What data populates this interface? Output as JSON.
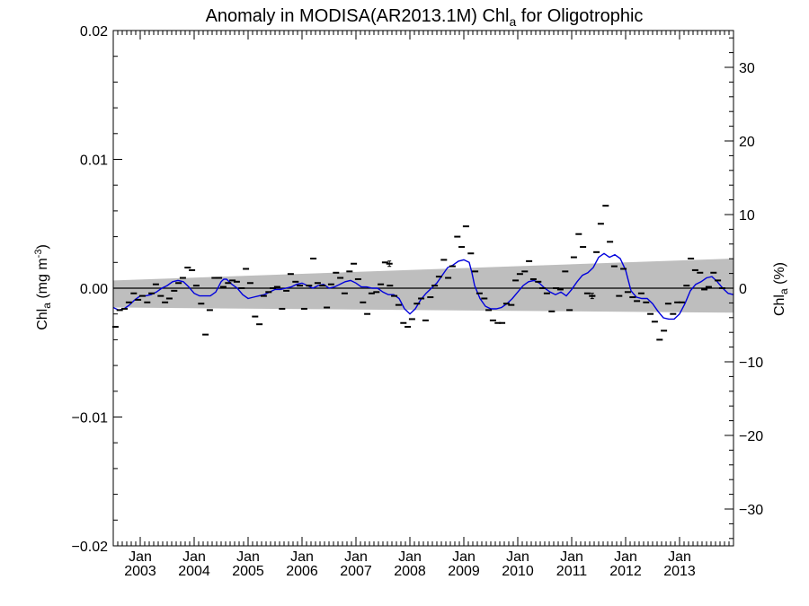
{
  "chart_data": {
    "type": "line",
    "title": "Anomaly in MODISA(AR2013.1M) Chl",
    "title_subscript": "a",
    "title_suffix": " for Oligotrophic",
    "ylabel_left": {
      "base": "Chl",
      "sub": "a",
      "mid": " (mg m",
      "sup": "-3",
      "end": ")"
    },
    "ylabel_right": {
      "base": "Chl",
      "sub": "a",
      "end": " (%)"
    },
    "y_left_range": [
      -0.02,
      0.02
    ],
    "y_left_ticks": [
      {
        "v": 0.02,
        "label": "0.02"
      },
      {
        "v": 0.01,
        "label": "0.01"
      },
      {
        "v": 0.0,
        "label": "0.00"
      },
      {
        "v": -0.01,
        "label": "−0.01"
      },
      {
        "v": -0.02,
        "label": "−0.02"
      }
    ],
    "y_right_ticks": [
      {
        "v": 30,
        "label": "30"
      },
      {
        "v": 20,
        "label": "20"
      },
      {
        "v": 10,
        "label": "10"
      },
      {
        "v": 0,
        "label": "0"
      },
      {
        "v": -10,
        "label": "−10"
      },
      {
        "v": -20,
        "label": "−20"
      },
      {
        "v": -30,
        "label": "−30"
      }
    ],
    "y_right_range": [
      -35,
      35
    ],
    "x_range": [
      2002.5,
      2014.0
    ],
    "x_ticks": [
      {
        "v": 2003.0,
        "month": "Jan",
        "year": "2003"
      },
      {
        "v": 2004.0,
        "month": "Jan",
        "year": "2004"
      },
      {
        "v": 2005.0,
        "month": "Jan",
        "year": "2005"
      },
      {
        "v": 2006.0,
        "month": "Jan",
        "year": "2006"
      },
      {
        "v": 2007.0,
        "month": "Jan",
        "year": "2007"
      },
      {
        "v": 2008.0,
        "month": "Jan",
        "year": "2008"
      },
      {
        "v": 2009.0,
        "month": "Jan",
        "year": "2009"
      },
      {
        "v": 2010.0,
        "month": "Jan",
        "year": "2010"
      },
      {
        "v": 2011.0,
        "month": "Jan",
        "year": "2011"
      },
      {
        "v": 2012.0,
        "month": "Jan",
        "year": "2012"
      },
      {
        "v": 2013.0,
        "month": "Jan",
        "year": "2013"
      }
    ],
    "trend_band": {
      "upper": [
        [
          2002.5,
          0.0006
        ],
        [
          2014.0,
          0.0023
        ]
      ],
      "lower": [
        [
          2002.5,
          -0.0015
        ],
        [
          2014.0,
          -0.0019
        ]
      ],
      "color": "#bebebe"
    },
    "zero_line_color": "#000000",
    "monthly_anomalies": {
      "color": "#000000",
      "points": [
        [
          2002.54,
          -0.003
        ],
        [
          2002.62,
          -0.0017
        ],
        [
          2002.71,
          -0.0016
        ],
        [
          2002.79,
          -0.0011
        ],
        [
          2002.88,
          -0.0004
        ],
        [
          2002.96,
          -0.0009
        ],
        [
          2003.04,
          -0.0006
        ],
        [
          2003.13,
          -0.0011
        ],
        [
          2003.21,
          -0.0004
        ],
        [
          2003.29,
          0.0003
        ],
        [
          2003.38,
          -0.0006
        ],
        [
          2003.46,
          -0.0011
        ],
        [
          2003.54,
          -0.0008
        ],
        [
          2003.63,
          -0.0002
        ],
        [
          2003.71,
          0.0004
        ],
        [
          2003.79,
          0.0008
        ],
        [
          2003.88,
          0.0016
        ],
        [
          2003.96,
          0.0014
        ],
        [
          2004.04,
          0.0002
        ],
        [
          2004.13,
          -0.0012
        ],
        [
          2004.21,
          -0.0036
        ],
        [
          2004.29,
          -0.0017
        ],
        [
          2004.38,
          0.0008
        ],
        [
          2004.46,
          0.0008
        ],
        [
          2004.54,
          0.0001
        ],
        [
          2004.63,
          0.0004
        ],
        [
          2004.71,
          0.0006
        ],
        [
          2004.79,
          0.0005
        ],
        [
          2004.88,
          0.0
        ],
        [
          2004.96,
          0.0015
        ],
        [
          2005.04,
          0.0004
        ],
        [
          2005.13,
          -0.0022
        ],
        [
          2005.21,
          -0.0028
        ],
        [
          2005.29,
          -0.0006
        ],
        [
          2005.38,
          -0.0003
        ],
        [
          2005.46,
          0.0
        ],
        [
          2005.54,
          0.0001
        ],
        [
          2005.63,
          -0.0016
        ],
        [
          2005.71,
          -0.0002
        ],
        [
          2005.79,
          0.0011
        ],
        [
          2005.88,
          0.0005
        ],
        [
          2005.96,
          0.0002
        ],
        [
          2006.04,
          -0.0016
        ],
        [
          2006.13,
          0.0002
        ],
        [
          2006.21,
          0.0023
        ],
        [
          2006.29,
          0.0004
        ],
        [
          2006.38,
          0.0002
        ],
        [
          2006.46,
          -0.0015
        ],
        [
          2006.54,
          0.0003
        ],
        [
          2006.63,
          0.0012
        ],
        [
          2006.71,
          0.0008
        ],
        [
          2006.79,
          -0.0004
        ],
        [
          2006.88,
          0.0013
        ],
        [
          2006.96,
          0.0019
        ],
        [
          2007.04,
          0.0007
        ],
        [
          2007.13,
          -0.0011
        ],
        [
          2007.21,
          -0.002
        ],
        [
          2007.29,
          -0.0004
        ],
        [
          2007.38,
          -0.0003
        ],
        [
          2007.46,
          0.0003
        ],
        [
          2007.54,
          0.002
        ],
        [
          2007.63,
          0.0002
        ],
        [
          2007.71,
          -0.0006
        ],
        [
          2007.79,
          -0.0013
        ],
        [
          2007.88,
          -0.0027
        ],
        [
          2007.96,
          -0.003
        ],
        [
          2008.04,
          -0.0024
        ],
        [
          2008.13,
          -0.0012
        ],
        [
          2008.21,
          -0.0008
        ],
        [
          2008.29,
          -0.0025
        ],
        [
          2008.38,
          -0.0007
        ],
        [
          2008.46,
          0.0002
        ],
        [
          2008.54,
          0.0009
        ],
        [
          2008.63,
          0.0022
        ],
        [
          2008.71,
          0.0008
        ],
        [
          2008.79,
          0.0017
        ],
        [
          2008.88,
          0.004
        ],
        [
          2008.96,
          0.0032
        ],
        [
          2009.04,
          0.0048
        ],
        [
          2009.13,
          0.0027
        ],
        [
          2009.21,
          0.0013
        ],
        [
          2009.29,
          -0.0004
        ],
        [
          2009.38,
          -0.0008
        ],
        [
          2009.46,
          -0.0017
        ],
        [
          2009.54,
          -0.0025
        ],
        [
          2009.63,
          -0.0027
        ],
        [
          2009.71,
          -0.0027
        ],
        [
          2009.79,
          -0.0012
        ],
        [
          2009.88,
          -0.0013
        ],
        [
          2009.96,
          0.0006
        ],
        [
          2010.04,
          0.0011
        ],
        [
          2010.13,
          0.0013
        ],
        [
          2010.21,
          0.0021
        ],
        [
          2010.29,
          0.0007
        ],
        [
          2010.38,
          0.0005
        ],
        [
          2010.46,
          0.0
        ],
        [
          2010.54,
          -0.0004
        ],
        [
          2010.63,
          -0.0018
        ],
        [
          2010.71,
          0.0
        ],
        [
          2010.79,
          -0.0001
        ],
        [
          2010.88,
          0.0013
        ],
        [
          2010.96,
          -0.0017
        ],
        [
          2011.04,
          0.0024
        ],
        [
          2011.13,
          0.0042
        ],
        [
          2011.21,
          0.0032
        ],
        [
          2011.29,
          -0.0004
        ],
        [
          2011.38,
          -0.0006
        ],
        [
          2011.46,
          0.0028
        ],
        [
          2011.54,
          0.005
        ],
        [
          2011.63,
          0.0064
        ],
        [
          2011.71,
          0.0036
        ],
        [
          2011.79,
          0.0017
        ],
        [
          2011.88,
          -0.0006
        ],
        [
          2011.96,
          0.0015
        ],
        [
          2012.04,
          -0.0003
        ],
        [
          2012.13,
          -0.0007
        ],
        [
          2012.21,
          -0.001
        ],
        [
          2012.29,
          -0.0004
        ],
        [
          2012.38,
          -0.0011
        ],
        [
          2012.46,
          -0.002
        ],
        [
          2012.54,
          -0.0026
        ],
        [
          2012.63,
          -0.004
        ],
        [
          2012.71,
          -0.0033
        ],
        [
          2012.79,
          -0.0012
        ],
        [
          2012.88,
          -0.002
        ],
        [
          2012.96,
          -0.0011
        ],
        [
          2013.04,
          -0.0011
        ],
        [
          2013.13,
          0.0002
        ],
        [
          2013.21,
          0.0023
        ],
        [
          2013.29,
          0.0014
        ],
        [
          2013.38,
          0.0012
        ],
        [
          2013.46,
          -0.0001
        ],
        [
          2013.54,
          0.0001
        ],
        [
          2013.63,
          0.0012
        ],
        [
          2013.71,
          0.0006
        ],
        [
          2013.79,
          0.0
        ]
      ]
    },
    "error_bar_points": [
      [
        2007.62,
        0.0019
      ],
      [
        2011.38,
        -0.0006
      ]
    ],
    "smoothed_series": {
      "color": "#0000dd",
      "points": [
        [
          2002.5,
          -0.0015
        ],
        [
          2002.6,
          -0.0017
        ],
        [
          2002.7,
          -0.0016
        ],
        [
          2002.8,
          -0.0013
        ],
        [
          2002.9,
          -0.0009
        ],
        [
          2003.0,
          -0.0006
        ],
        [
          2003.1,
          -0.0006
        ],
        [
          2003.2,
          -0.0005
        ],
        [
          2003.3,
          -0.0003
        ],
        [
          2003.4,
          0.0
        ],
        [
          2003.5,
          0.0002
        ],
        [
          2003.6,
          0.0005
        ],
        [
          2003.7,
          0.0006
        ],
        [
          2003.8,
          0.0005
        ],
        [
          2003.9,
          0.0001
        ],
        [
          2004.0,
          -0.0004
        ],
        [
          2004.1,
          -0.0006
        ],
        [
          2004.2,
          -0.0006
        ],
        [
          2004.3,
          -0.0006
        ],
        [
          2004.4,
          -0.0003
        ],
        [
          2004.5,
          0.0005
        ],
        [
          2004.55,
          0.0007
        ],
        [
          2004.6,
          0.0007
        ],
        [
          2004.7,
          0.0003
        ],
        [
          2004.8,
          0.0
        ],
        [
          2004.9,
          -0.0005
        ],
        [
          2005.0,
          -0.0008
        ],
        [
          2005.1,
          -0.0007
        ],
        [
          2005.2,
          -0.0006
        ],
        [
          2005.3,
          -0.0005
        ],
        [
          2005.4,
          -0.0003
        ],
        [
          2005.5,
          -0.0001
        ],
        [
          2005.6,
          -0.0001
        ],
        [
          2005.7,
          0.0
        ],
        [
          2005.8,
          0.0001
        ],
        [
          2005.9,
          0.0003
        ],
        [
          2006.0,
          0.0004
        ],
        [
          2006.1,
          0.0002
        ],
        [
          2006.2,
          0.0
        ],
        [
          2006.3,
          0.0002
        ],
        [
          2006.4,
          0.0003
        ],
        [
          2006.5,
          0.0
        ],
        [
          2006.6,
          0.0001
        ],
        [
          2006.7,
          0.0003
        ],
        [
          2006.8,
          0.0005
        ],
        [
          2006.9,
          0.0006
        ],
        [
          2007.0,
          0.0004
        ],
        [
          2007.1,
          0.0001
        ],
        [
          2007.2,
          0.0001
        ],
        [
          2007.3,
          0.0
        ],
        [
          2007.4,
          0.0
        ],
        [
          2007.5,
          -0.0003
        ],
        [
          2007.6,
          -0.0005
        ],
        [
          2007.7,
          -0.0005
        ],
        [
          2007.8,
          -0.0008
        ],
        [
          2007.9,
          -0.0016
        ],
        [
          2008.0,
          -0.002
        ],
        [
          2008.1,
          -0.0016
        ],
        [
          2008.2,
          -0.0009
        ],
        [
          2008.3,
          -0.0004
        ],
        [
          2008.4,
          0.0
        ],
        [
          2008.5,
          0.0004
        ],
        [
          2008.6,
          0.001
        ],
        [
          2008.7,
          0.0016
        ],
        [
          2008.8,
          0.0018
        ],
        [
          2008.9,
          0.0021
        ],
        [
          2009.0,
          0.0022
        ],
        [
          2009.1,
          0.002
        ],
        [
          2009.15,
          0.0012
        ],
        [
          2009.2,
          0.0002
        ],
        [
          2009.3,
          -0.0008
        ],
        [
          2009.4,
          -0.0014
        ],
        [
          2009.5,
          -0.0016
        ],
        [
          2009.6,
          -0.0016
        ],
        [
          2009.7,
          -0.0015
        ],
        [
          2009.8,
          -0.0012
        ],
        [
          2009.9,
          -0.0008
        ],
        [
          2010.0,
          -0.0003
        ],
        [
          2010.1,
          0.0002
        ],
        [
          2010.2,
          0.0005
        ],
        [
          2010.3,
          0.0006
        ],
        [
          2010.4,
          0.0004
        ],
        [
          2010.5,
          0.0
        ],
        [
          2010.6,
          -0.0003
        ],
        [
          2010.7,
          -0.0005
        ],
        [
          2010.8,
          -0.0003
        ],
        [
          2010.9,
          -0.0006
        ],
        [
          2011.0,
          -0.0001
        ],
        [
          2011.1,
          0.0005
        ],
        [
          2011.2,
          0.001
        ],
        [
          2011.3,
          0.0012
        ],
        [
          2011.4,
          0.0016
        ],
        [
          2011.5,
          0.0024
        ],
        [
          2011.6,
          0.0027
        ],
        [
          2011.7,
          0.0024
        ],
        [
          2011.8,
          0.0026
        ],
        [
          2011.9,
          0.0023
        ],
        [
          2012.0,
          0.0014
        ],
        [
          2012.1,
          -0.0002
        ],
        [
          2012.2,
          -0.0007
        ],
        [
          2012.3,
          -0.0008
        ],
        [
          2012.4,
          -0.0008
        ],
        [
          2012.5,
          -0.0012
        ],
        [
          2012.6,
          -0.0018
        ],
        [
          2012.7,
          -0.0023
        ],
        [
          2012.8,
          -0.0024
        ],
        [
          2012.9,
          -0.0024
        ],
        [
          2013.0,
          -0.002
        ],
        [
          2013.1,
          -0.0012
        ],
        [
          2013.2,
          -0.0002
        ],
        [
          2013.3,
          0.0003
        ],
        [
          2013.4,
          0.0005
        ],
        [
          2013.5,
          0.0008
        ],
        [
          2013.6,
          0.0009
        ],
        [
          2013.7,
          0.0005
        ],
        [
          2013.8,
          0.0
        ],
        [
          2013.9,
          -0.0004
        ],
        [
          2014.0,
          -0.0005
        ]
      ]
    },
    "grid": false,
    "legend": "none"
  }
}
